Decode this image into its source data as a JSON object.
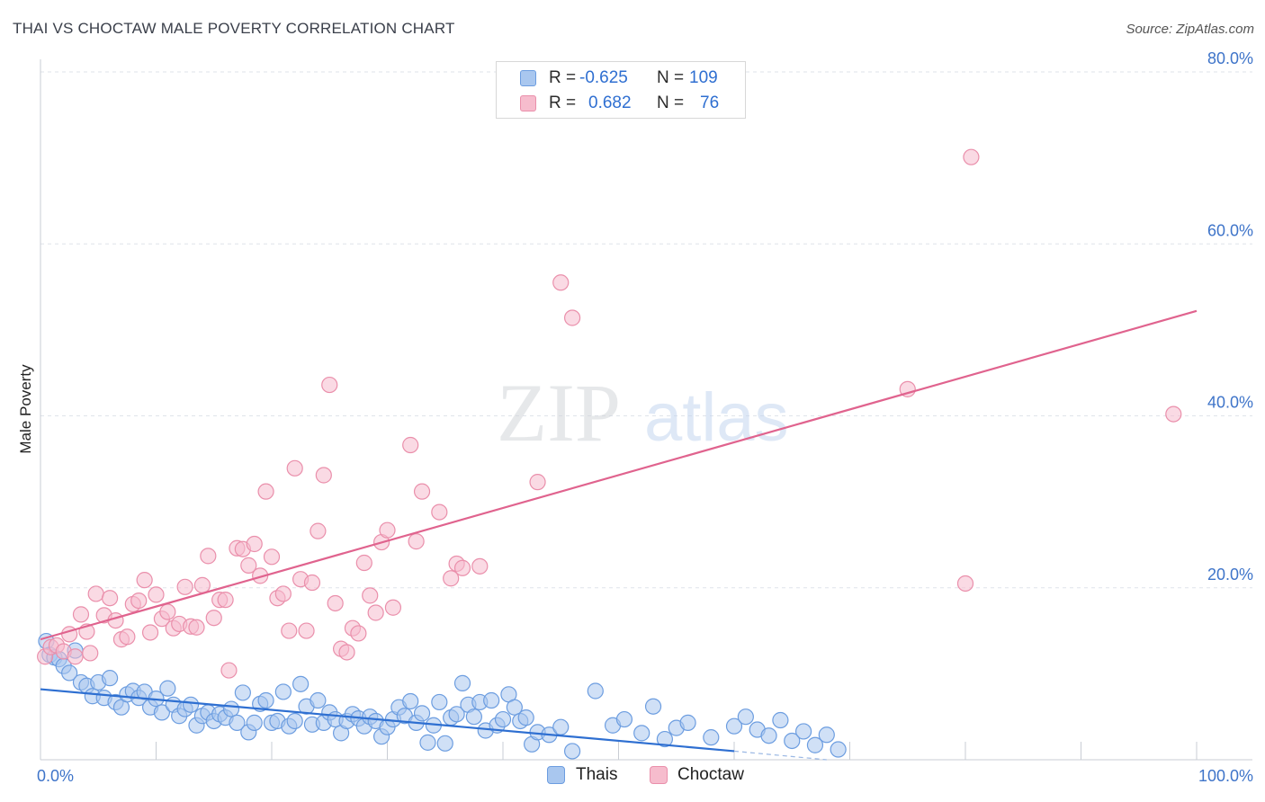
{
  "title": "THAI VS CHOCTAW MALE POVERTY CORRELATION CHART",
  "source": "Source: ZipAtlas.com",
  "watermark": {
    "zip": "ZIP",
    "atlas": "atlas"
  },
  "legend": {
    "r_label": "R =",
    "n_label": "N =",
    "series": [
      {
        "name": "Thais",
        "r": "-0.625",
        "n": "109"
      },
      {
        "name": "Choctaw",
        "r": "0.682",
        "n": "76"
      }
    ]
  },
  "colors": {
    "thais_fill": "#a9c7ef",
    "thais_stroke": "#6c9de0",
    "thais_line": "#2e6fd1",
    "choctaw_fill": "#f6bccd",
    "choctaw_stroke": "#ea8fab",
    "choctaw_line": "#e0638e",
    "tick_text": "#3e74c9",
    "grid": "#dfe3ea"
  },
  "chart_data": {
    "type": "scatter",
    "title": "THAI VS CHOCTAW MALE POVERTY CORRELATION CHART",
    "xlabel": "",
    "ylabel": "Male Poverty",
    "xlim": [
      0,
      100
    ],
    "ylim": [
      0,
      80
    ],
    "x_tick_labels": [
      "0.0%",
      "100.0%"
    ],
    "y_ticks": [
      20,
      40,
      60,
      80
    ],
    "y_tick_labels": [
      "20.0%",
      "40.0%",
      "60.0%",
      "80.0%"
    ],
    "series": [
      {
        "name": "Thais",
        "r": -0.625,
        "n": 109,
        "trend": {
          "x0": 0,
          "y0": 8.2,
          "x1": 60,
          "y1": 1.0,
          "dash_x1": 68,
          "dash_y1": 0.0
        },
        "points": [
          [
            0.5,
            13.8
          ],
          [
            0.8,
            12.2
          ],
          [
            1.2,
            11.9
          ],
          [
            1.6,
            11.7
          ],
          [
            2.0,
            10.9
          ],
          [
            2.5,
            10.1
          ],
          [
            3.0,
            12.7
          ],
          [
            3.5,
            9.0
          ],
          [
            4.0,
            8.6
          ],
          [
            4.5,
            7.4
          ],
          [
            5.0,
            9.0
          ],
          [
            5.5,
            7.2
          ],
          [
            6.0,
            9.5
          ],
          [
            6.5,
            6.7
          ],
          [
            7.0,
            6.1
          ],
          [
            7.5,
            7.6
          ],
          [
            8.0,
            8.0
          ],
          [
            8.5,
            7.2
          ],
          [
            9.0,
            7.9
          ],
          [
            9.5,
            6.1
          ],
          [
            10.0,
            7.1
          ],
          [
            10.5,
            5.5
          ],
          [
            11.0,
            8.3
          ],
          [
            11.5,
            6.4
          ],
          [
            12.0,
            5.1
          ],
          [
            12.5,
            5.9
          ],
          [
            13.0,
            6.4
          ],
          [
            13.5,
            4.0
          ],
          [
            14.0,
            5.1
          ],
          [
            14.5,
            5.5
          ],
          [
            15.0,
            4.5
          ],
          [
            15.5,
            5.3
          ],
          [
            16.0,
            4.9
          ],
          [
            16.5,
            5.9
          ],
          [
            17.0,
            4.3
          ],
          [
            17.5,
            7.8
          ],
          [
            18.0,
            3.2
          ],
          [
            18.5,
            4.3
          ],
          [
            19.0,
            6.5
          ],
          [
            19.5,
            6.9
          ],
          [
            20.0,
            4.3
          ],
          [
            20.5,
            4.5
          ],
          [
            21.0,
            7.9
          ],
          [
            21.5,
            3.9
          ],
          [
            22.0,
            4.5
          ],
          [
            22.5,
            8.8
          ],
          [
            23.0,
            6.2
          ],
          [
            23.5,
            4.1
          ],
          [
            24.0,
            6.9
          ],
          [
            24.5,
            4.3
          ],
          [
            25.0,
            5.5
          ],
          [
            25.5,
            4.7
          ],
          [
            26.0,
            3.1
          ],
          [
            26.5,
            4.5
          ],
          [
            27.0,
            5.3
          ],
          [
            27.5,
            4.8
          ],
          [
            28.0,
            3.9
          ],
          [
            28.5,
            5.0
          ],
          [
            29.0,
            4.5
          ],
          [
            29.5,
            2.7
          ],
          [
            30.0,
            3.8
          ],
          [
            30.5,
            4.7
          ],
          [
            31.0,
            6.1
          ],
          [
            31.5,
            5.1
          ],
          [
            32.0,
            6.8
          ],
          [
            32.5,
            4.3
          ],
          [
            33.0,
            5.4
          ],
          [
            33.5,
            2.0
          ],
          [
            34.0,
            4.0
          ],
          [
            34.5,
            6.7
          ],
          [
            35.0,
            1.9
          ],
          [
            35.5,
            4.9
          ],
          [
            36.0,
            5.3
          ],
          [
            36.5,
            8.9
          ],
          [
            37.0,
            6.4
          ],
          [
            37.5,
            5.0
          ],
          [
            38.0,
            6.7
          ],
          [
            38.5,
            3.4
          ],
          [
            39.0,
            6.9
          ],
          [
            39.5,
            4.0
          ],
          [
            40.0,
            4.7
          ],
          [
            40.5,
            7.6
          ],
          [
            41.0,
            6.1
          ],
          [
            41.5,
            4.5
          ],
          [
            42.0,
            4.9
          ],
          [
            42.5,
            1.8
          ],
          [
            43.0,
            3.2
          ],
          [
            44.0,
            2.9
          ],
          [
            45.0,
            3.8
          ],
          [
            46.0,
            1.0
          ],
          [
            48.0,
            8.0
          ],
          [
            49.5,
            4.0
          ],
          [
            50.5,
            4.7
          ],
          [
            52.0,
            3.1
          ],
          [
            53.0,
            6.2
          ],
          [
            54.0,
            2.4
          ],
          [
            55.0,
            3.7
          ],
          [
            56.0,
            4.3
          ],
          [
            58.0,
            2.6
          ],
          [
            60.0,
            3.9
          ],
          [
            61.0,
            5.0
          ],
          [
            62.0,
            3.5
          ],
          [
            63.0,
            2.8
          ],
          [
            64.0,
            4.6
          ],
          [
            65.0,
            2.2
          ],
          [
            66.0,
            3.3
          ],
          [
            67.0,
            1.7
          ],
          [
            68.0,
            2.9
          ],
          [
            69.0,
            1.2
          ]
        ]
      },
      {
        "name": "Choctaw",
        "r": 0.682,
        "n": 76,
        "trend": {
          "x0": 0,
          "y0": 14.0,
          "x1": 100,
          "y1": 52.2
        },
        "points": [
          [
            0.4,
            12.0
          ],
          [
            0.9,
            13.1
          ],
          [
            1.4,
            13.3
          ],
          [
            2.0,
            12.6
          ],
          [
            2.5,
            14.6
          ],
          [
            3.0,
            12.0
          ],
          [
            3.5,
            16.9
          ],
          [
            4.0,
            14.9
          ],
          [
            4.3,
            12.4
          ],
          [
            4.8,
            19.3
          ],
          [
            5.5,
            16.8
          ],
          [
            6.0,
            18.8
          ],
          [
            6.5,
            16.2
          ],
          [
            7.0,
            14.0
          ],
          [
            7.5,
            14.3
          ],
          [
            8.0,
            18.1
          ],
          [
            8.5,
            18.5
          ],
          [
            9.0,
            20.9
          ],
          [
            9.5,
            14.8
          ],
          [
            10.0,
            19.2
          ],
          [
            10.5,
            16.4
          ],
          [
            11.0,
            17.2
          ],
          [
            11.5,
            15.3
          ],
          [
            12.0,
            15.8
          ],
          [
            12.5,
            20.1
          ],
          [
            13.0,
            15.5
          ],
          [
            13.5,
            15.4
          ],
          [
            14.0,
            20.3
          ],
          [
            14.5,
            23.7
          ],
          [
            15.0,
            16.5
          ],
          [
            15.5,
            18.6
          ],
          [
            16.0,
            18.6
          ],
          [
            16.3,
            10.4
          ],
          [
            17.0,
            24.6
          ],
          [
            17.5,
            24.5
          ],
          [
            18.0,
            22.6
          ],
          [
            18.5,
            25.1
          ],
          [
            19.0,
            21.4
          ],
          [
            19.5,
            31.2
          ],
          [
            20.0,
            23.6
          ],
          [
            20.5,
            18.8
          ],
          [
            21.0,
            19.3
          ],
          [
            21.5,
            15.0
          ],
          [
            22.0,
            33.9
          ],
          [
            22.5,
            21.0
          ],
          [
            23.0,
            15.0
          ],
          [
            23.5,
            20.6
          ],
          [
            24.0,
            26.6
          ],
          [
            24.5,
            33.1
          ],
          [
            25.0,
            43.6
          ],
          [
            25.5,
            18.2
          ],
          [
            26.0,
            12.9
          ],
          [
            26.5,
            12.5
          ],
          [
            27.0,
            15.3
          ],
          [
            27.5,
            14.7
          ],
          [
            28.0,
            22.9
          ],
          [
            28.5,
            19.1
          ],
          [
            29.0,
            17.1
          ],
          [
            29.5,
            25.3
          ],
          [
            30.0,
            26.7
          ],
          [
            30.5,
            17.7
          ],
          [
            32.0,
            36.6
          ],
          [
            32.5,
            25.4
          ],
          [
            33.0,
            31.2
          ],
          [
            34.5,
            28.8
          ],
          [
            35.5,
            21.1
          ],
          [
            36.0,
            22.8
          ],
          [
            36.5,
            22.3
          ],
          [
            38.0,
            22.5
          ],
          [
            43.0,
            32.3
          ],
          [
            45.0,
            55.5
          ],
          [
            46.0,
            51.4
          ],
          [
            75.0,
            43.1
          ],
          [
            80.0,
            20.5
          ],
          [
            80.5,
            70.1
          ],
          [
            98.0,
            40.2
          ]
        ]
      }
    ]
  }
}
